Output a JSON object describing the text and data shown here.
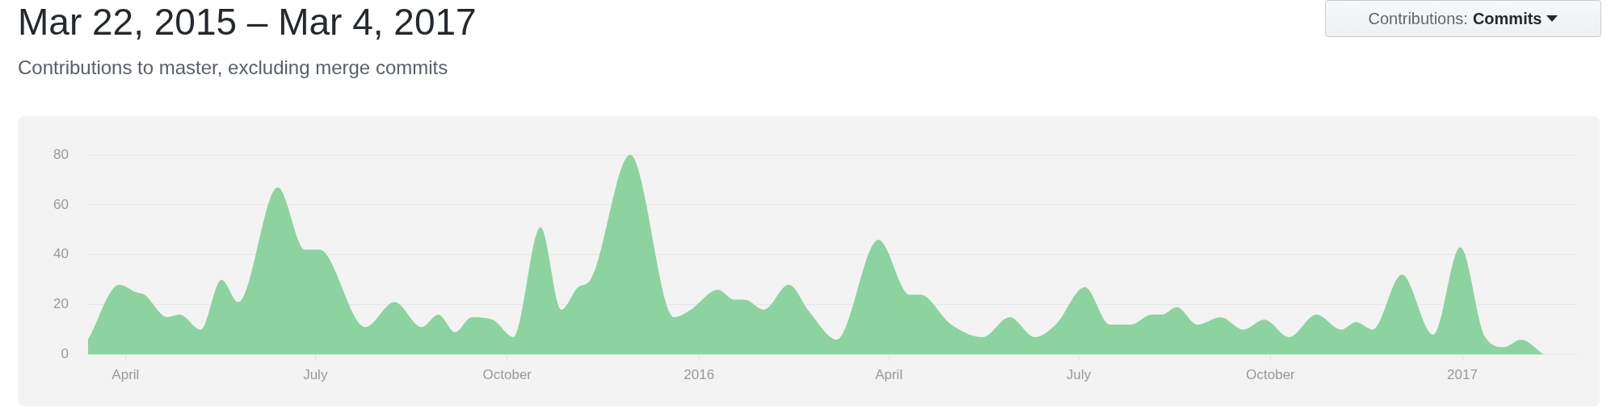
{
  "chart_data": {
    "type": "area",
    "title": "Mar 22, 2015 – Mar 4, 2017",
    "subtitle": "Contributions to master, excluding merge commits",
    "annotations": [
      "Contributions:",
      "Commits"
    ],
    "series": [
      {
        "color": "#8cd3a0",
        "x": [
          "2015-03-14",
          "2015-03-29",
          "2015-04-06",
          "2015-04-10",
          "2015-04-21",
          "2015-04-27",
          "2015-05-07",
          "2015-05-17",
          "2015-05-25",
          "2015-06-13",
          "2015-06-26",
          "2015-07-03",
          "2015-07-25",
          "2015-08-08",
          "2015-08-21",
          "2015-08-29",
          "2015-09-06",
          "2015-09-14",
          "2015-09-24",
          "2015-10-04",
          "2015-10-17",
          "2015-10-27",
          "2015-11-04",
          "2015-11-10",
          "2015-11-29",
          "2015-12-20",
          "2015-12-28",
          "2016-01-10",
          "2016-01-18",
          "2016-01-23",
          "2016-02-01",
          "2016-02-13",
          "2016-02-23",
          "2016-03-07",
          "2016-03-27",
          "2016-04-11",
          "2016-04-16",
          "2016-05-01",
          "2016-05-16",
          "2016-05-29",
          "2016-06-10",
          "2016-06-20",
          "2016-07-04",
          "2016-07-16",
          "2016-07-26",
          "2016-08-05",
          "2016-08-10",
          "2016-08-17",
          "2016-08-27",
          "2016-09-07",
          "2016-09-18",
          "2016-09-28",
          "2016-10-10",
          "2016-10-23",
          "2016-11-04",
          "2016-11-11",
          "2016-11-19",
          "2016-12-03",
          "2016-12-18",
          "2016-12-31",
          "2017-01-12",
          "2017-01-21",
          "2017-01-29",
          "2017-02-09"
        ],
        "values": [
          6,
          28,
          25,
          24,
          15,
          16,
          10,
          30,
          21,
          67,
          42,
          42,
          11,
          21,
          11,
          16,
          9,
          15,
          14,
          7,
          51,
          18,
          27,
          30,
          80,
          15,
          18,
          26,
          22,
          22,
          18,
          28,
          17,
          6,
          46,
          24,
          24,
          12,
          7,
          15,
          7,
          12,
          27,
          12,
          12,
          16,
          16,
          19,
          12,
          15,
          10,
          14,
          7,
          16,
          10,
          13,
          10,
          32,
          8,
          43,
          7,
          3,
          6,
          0
        ]
      }
    ],
    "xlim": [
      "2015-03-14",
      "2017-02-25"
    ],
    "xticks": [
      {
        "value": "2015-04-01",
        "label": "April"
      },
      {
        "value": "2015-07-01",
        "label": "July"
      },
      {
        "value": "2015-10-01",
        "label": "October"
      },
      {
        "value": "2016-01-01",
        "label": "2016"
      },
      {
        "value": "2016-04-01",
        "label": "April"
      },
      {
        "value": "2016-07-01",
        "label": "July"
      },
      {
        "value": "2016-10-01",
        "label": "October"
      },
      {
        "value": "2017-01-01",
        "label": "2017"
      }
    ],
    "ylim": [
      0,
      80
    ],
    "yticks": [
      0,
      20,
      40,
      60,
      80
    ],
    "grid": "y",
    "legend": false
  }
}
